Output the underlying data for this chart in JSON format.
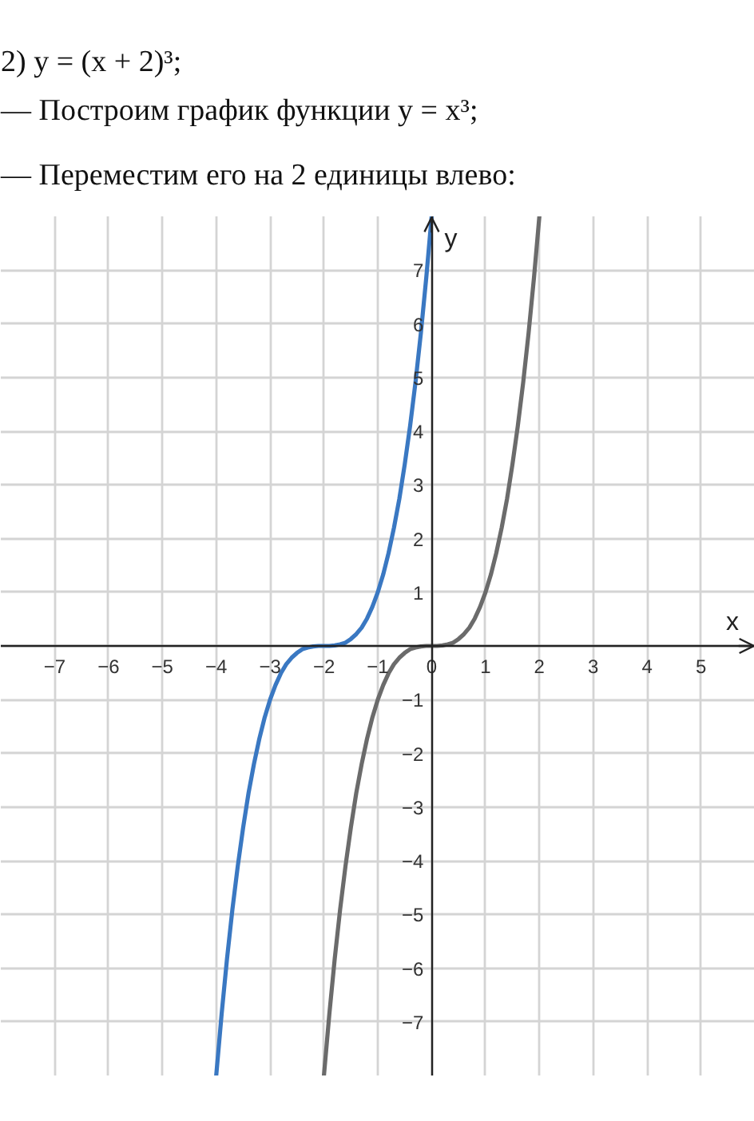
{
  "chart_data": {
    "type": "line",
    "title": "2) y = (x + 2)³;",
    "annotations": [
      "— Построим график функции y = x³;",
      "— Переместим его на 2 единицы влево:"
    ],
    "xlabel": "x",
    "ylabel": "y",
    "xlim": [
      -8,
      6
    ],
    "ylim": [
      -8,
      8
    ],
    "xticks": [
      -7,
      -6,
      -5,
      -4,
      -3,
      -2,
      -1,
      0,
      1,
      2,
      3,
      4,
      5
    ],
    "yticks": [
      -7,
      -6,
      -5,
      -4,
      -3,
      -2,
      -1,
      1,
      2,
      3,
      4,
      5,
      6,
      7
    ],
    "grid": true,
    "series": [
      {
        "color": "#6b6b6b",
        "x": [
          -2,
          -1.9,
          -1.8,
          -1.7,
          -1.6,
          -1.5,
          -1.4,
          -1.3,
          -1.2,
          -1.1,
          -1,
          -0.9,
          -0.8,
          -0.7,
          -0.6,
          -0.5,
          -0.4,
          -0.3,
          -0.2,
          -0.1,
          0,
          0.1,
          0.2,
          0.3,
          0.4,
          0.5,
          0.6,
          0.7,
          0.8,
          0.9,
          1,
          1.1,
          1.2,
          1.3,
          1.4,
          1.5,
          1.6,
          1.7,
          1.8,
          1.9,
          2
        ],
        "values": [
          -8,
          -6.86,
          -5.83,
          -4.91,
          -4.1,
          -3.38,
          -2.74,
          -2.2,
          -1.73,
          -1.33,
          -1,
          -0.73,
          -0.51,
          -0.34,
          -0.22,
          -0.13,
          -0.06,
          -0.03,
          -0.01,
          0,
          0,
          0,
          0.01,
          0.03,
          0.06,
          0.13,
          0.22,
          0.34,
          0.51,
          0.73,
          1,
          1.33,
          1.73,
          2.2,
          2.74,
          3.38,
          4.1,
          4.91,
          5.83,
          6.86,
          8
        ]
      },
      {
        "color": "#3a78c2",
        "x": [
          -4,
          -3.9,
          -3.8,
          -3.7,
          -3.6,
          -3.5,
          -3.4,
          -3.3,
          -3.2,
          -3.1,
          -3,
          -2.9,
          -2.8,
          -2.7,
          -2.6,
          -2.5,
          -2.4,
          -2.3,
          -2.2,
          -2.1,
          -2,
          -1.9,
          -1.8,
          -1.7,
          -1.6,
          -1.5,
          -1.4,
          -1.3,
          -1.2,
          -1.1,
          -1,
          -0.9,
          -0.8,
          -0.7,
          -0.6,
          -0.5,
          -0.4,
          -0.3,
          -0.2,
          -0.1,
          0
        ],
        "values": [
          -8,
          -6.86,
          -5.83,
          -4.91,
          -4.1,
          -3.38,
          -2.74,
          -2.2,
          -1.73,
          -1.33,
          -1,
          -0.73,
          -0.51,
          -0.34,
          -0.22,
          -0.13,
          -0.06,
          -0.03,
          -0.01,
          0,
          0,
          0,
          0.01,
          0.03,
          0.06,
          0.13,
          0.22,
          0.34,
          0.51,
          0.73,
          1,
          1.33,
          1.73,
          2.2,
          2.74,
          3.38,
          4.1,
          4.91,
          5.83,
          6.86,
          8
        ]
      }
    ]
  }
}
